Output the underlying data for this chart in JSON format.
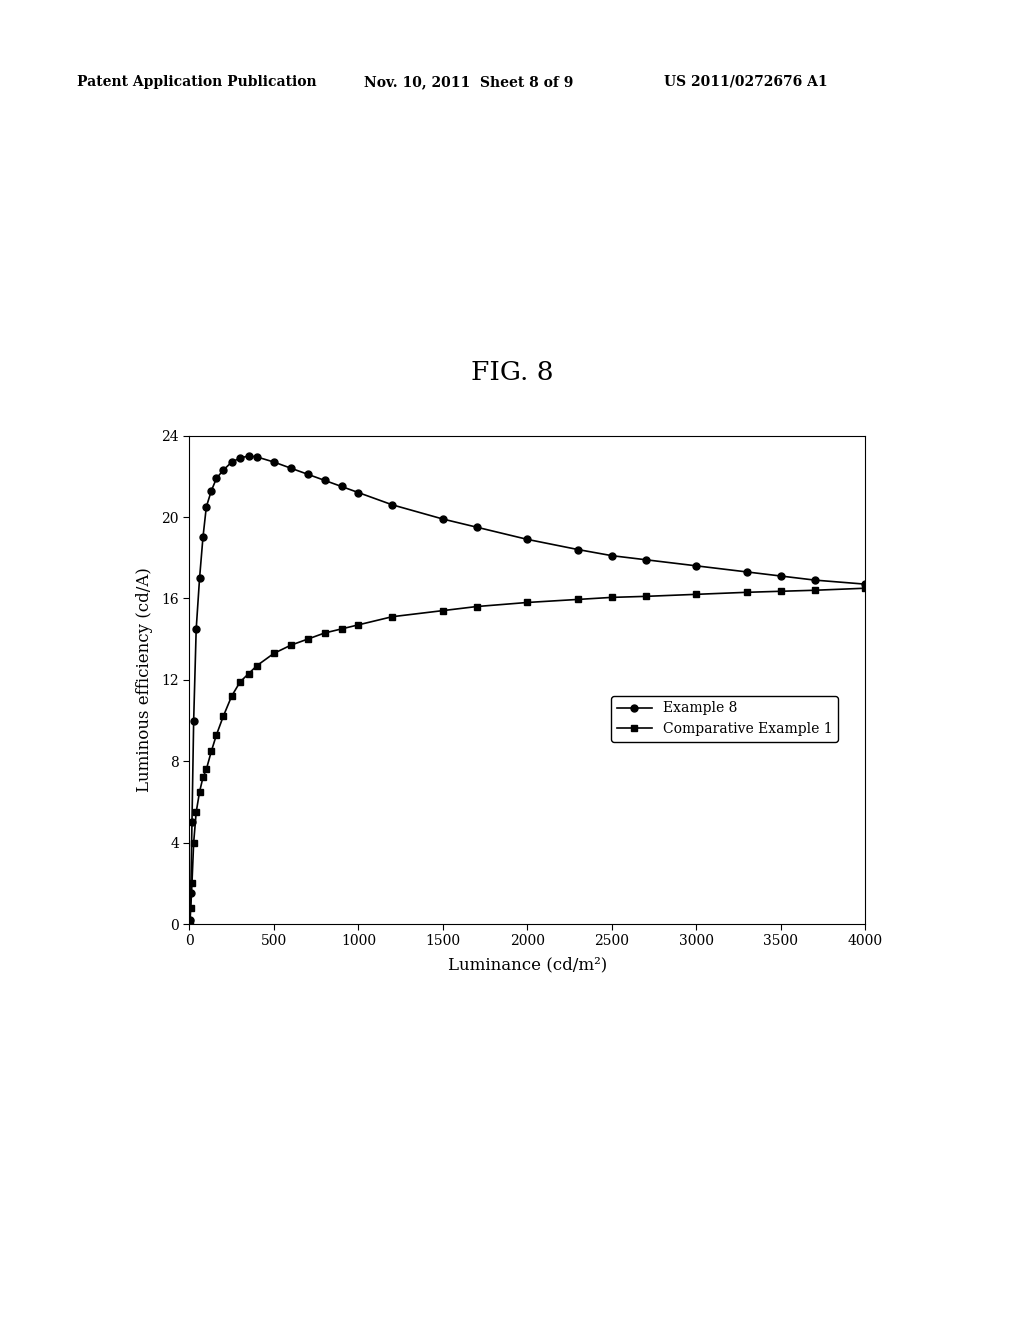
{
  "title": "FIG. 8",
  "xlabel": "Luminance (cd/m²)",
  "ylabel": "Luminous efficiency (cd/A)",
  "xlim": [
    0,
    4000
  ],
  "ylim": [
    0,
    24
  ],
  "xticks": [
    0,
    500,
    1000,
    1500,
    2000,
    2500,
    3000,
    3500,
    4000
  ],
  "yticks": [
    0,
    4,
    8,
    12,
    16,
    20,
    24
  ],
  "example8_x": [
    3,
    8,
    15,
    25,
    40,
    60,
    80,
    100,
    130,
    160,
    200,
    250,
    300,
    350,
    400,
    500,
    600,
    700,
    800,
    900,
    1000,
    1200,
    1500,
    1700,
    2000,
    2300,
    2500,
    2700,
    3000,
    3300,
    3500,
    3700,
    4000
  ],
  "example8_y": [
    0.2,
    1.5,
    5.0,
    10.0,
    14.5,
    17.0,
    19.0,
    20.5,
    21.3,
    21.9,
    22.3,
    22.7,
    22.9,
    23.0,
    22.95,
    22.7,
    22.4,
    22.1,
    21.8,
    21.5,
    21.2,
    20.6,
    19.9,
    19.5,
    18.9,
    18.4,
    18.1,
    17.9,
    17.6,
    17.3,
    17.1,
    16.9,
    16.7
  ],
  "comp1_x": [
    3,
    8,
    15,
    25,
    40,
    60,
    80,
    100,
    130,
    160,
    200,
    250,
    300,
    350,
    400,
    500,
    600,
    700,
    800,
    900,
    1000,
    1200,
    1500,
    1700,
    2000,
    2300,
    2500,
    2700,
    3000,
    3300,
    3500,
    3700,
    4000
  ],
  "comp1_y": [
    0.1,
    0.8,
    2.0,
    4.0,
    5.5,
    6.5,
    7.2,
    7.6,
    8.5,
    9.3,
    10.2,
    11.2,
    11.9,
    12.3,
    12.7,
    13.3,
    13.7,
    14.0,
    14.3,
    14.5,
    14.7,
    15.1,
    15.4,
    15.6,
    15.8,
    15.95,
    16.05,
    16.1,
    16.2,
    16.3,
    16.35,
    16.4,
    16.5
  ],
  "header_left": "Patent Application Publication",
  "header_center": "Nov. 10, 2011  Sheet 8 of 9",
  "header_right": "US 2011/0272676 A1",
  "legend_example8": "Example 8",
  "legend_comp1": "Comparative Example 1",
  "line_color": "#000000",
  "background_color": "#ffffff",
  "marker_size": 5,
  "line_width": 1.2
}
